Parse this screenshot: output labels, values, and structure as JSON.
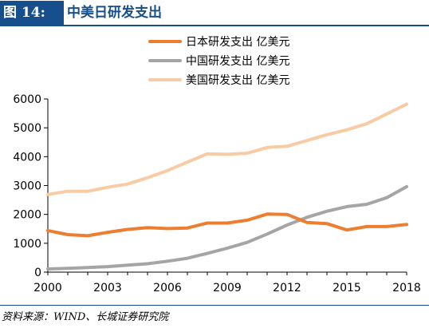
{
  "header": {
    "figure_label": "图 14:",
    "title": "中美日研发支出"
  },
  "source": "资料来源：WIND、长城证券研究院",
  "colors": {
    "header_blue": "#174f8c",
    "japan": "#ed7d31",
    "china": "#a5a5a5",
    "usa": "#f8cba4"
  },
  "chart_data": {
    "type": "line",
    "title": "中美日研发支出",
    "xlabel": "",
    "ylabel": "",
    "x": [
      2000,
      2001,
      2002,
      2003,
      2004,
      2005,
      2006,
      2007,
      2008,
      2009,
      2010,
      2011,
      2012,
      2013,
      2014,
      2015,
      2016,
      2017,
      2018
    ],
    "x_ticks": [
      "2000",
      "2003",
      "2006",
      "2009",
      "2012",
      "2015",
      "2018"
    ],
    "x_tick_values": [
      2000,
      2003,
      2006,
      2009,
      2012,
      2015,
      2018
    ],
    "xlim": [
      2000,
      2018
    ],
    "ylim": [
      0,
      6000
    ],
    "y_ticks": [
      "0",
      "1000",
      "2000",
      "3000",
      "4000",
      "5000",
      "6000"
    ],
    "y_tick_values": [
      0,
      1000,
      2000,
      3000,
      4000,
      5000,
      6000
    ],
    "grid": false,
    "legend_position": "top-center",
    "series": [
      {
        "name": "日本研发支出 亿美元",
        "color": "#ed7d31",
        "values": [
          1440,
          1300,
          1260,
          1380,
          1480,
          1540,
          1510,
          1530,
          1700,
          1700,
          1800,
          2010,
          2000,
          1720,
          1680,
          1460,
          1580,
          1580,
          1650
        ]
      },
      {
        "name": "中国研发支出 亿美元",
        "color": "#a5a5a5",
        "values": [
          110,
          130,
          160,
          190,
          240,
          290,
          380,
          480,
          650,
          830,
          1030,
          1320,
          1630,
          1900,
          2110,
          2270,
          2350,
          2580,
          2960
        ]
      },
      {
        "name": "美国研发支出 亿美元",
        "color": "#f8cba4",
        "values": [
          2690,
          2800,
          2800,
          2940,
          3050,
          3270,
          3520,
          3810,
          4100,
          4080,
          4120,
          4320,
          4360,
          4560,
          4760,
          4930,
          5140,
          5480,
          5820
        ]
      }
    ]
  }
}
